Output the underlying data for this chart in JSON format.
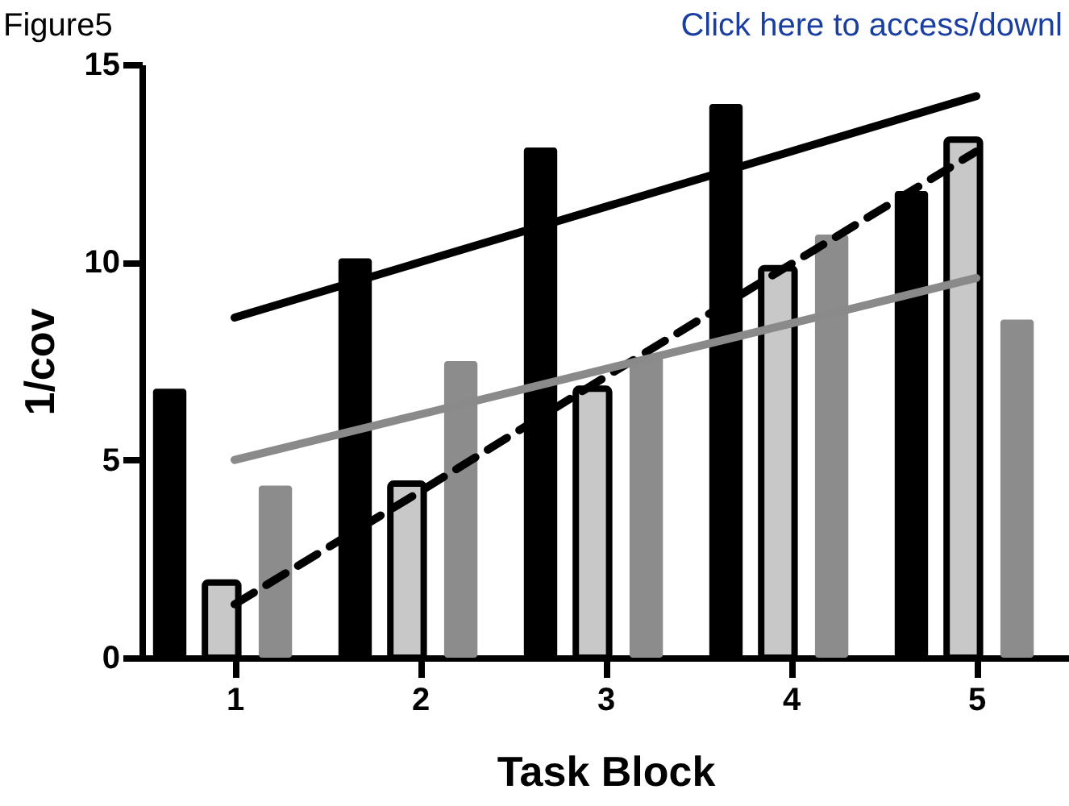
{
  "chart_data": {
    "type": "bar",
    "xlabel": "Task Block",
    "ylabel": "1/cov",
    "categories": [
      "1",
      "2",
      "3",
      "4",
      "5"
    ],
    "series": [
      {
        "color": "#000000",
        "values": [
          6.8,
          10.1,
          12.9,
          14.0,
          11.8
        ]
      },
      {
        "color": "#c8c8c8",
        "values": [
          1.9,
          4.4,
          6.8,
          9.85,
          13.1
        ]
      },
      {
        "color": "#8c8c8c",
        "values": [
          4.35,
          7.5,
          7.6,
          10.7,
          8.55
        ]
      },
      {
        "type": "line",
        "color": "#000000",
        "line_style": "solid",
        "values": [
          8.6,
          10.0,
          11.4,
          12.8,
          14.2
        ]
      },
      {
        "type": "line",
        "color": "#000000",
        "line_style": "dashed",
        "values": [
          1.35,
          4.2,
          7.1,
          9.95,
          12.8
        ]
      },
      {
        "type": "line",
        "color": "#8a8a8a",
        "line_style": "solid",
        "values": [
          5.0,
          6.15,
          7.3,
          8.45,
          9.6
        ]
      }
    ],
    "ylim": [
      0,
      15
    ],
    "yticks": [
      0,
      5,
      10,
      15
    ],
    "annotations": [
      "Figure5",
      "Click here to access/downl"
    ]
  }
}
